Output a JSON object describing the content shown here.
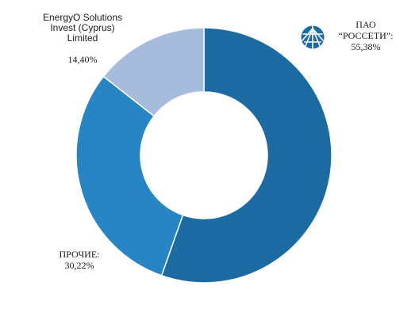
{
  "chart_data": {
    "type": "pie",
    "title": "",
    "donut": true,
    "start_angle_deg": 0,
    "direction": "clockwise",
    "slices": [
      {
        "label_lines": [
          "ПАО",
          "“РОССЕТИ”:"
        ],
        "value_text": "55,38%",
        "value": 55.38,
        "color": "#1b6aa1"
      },
      {
        "label_lines": [
          "ПРОЧИЕ:"
        ],
        "value_text": "30,22%",
        "value": 30.22,
        "color": "#2785c4"
      },
      {
        "label_lines": [
          "EnergyO Solutions",
          "Invest (Cyprus)",
          "Limited"
        ],
        "value_text": "14,40%",
        "value": 14.4,
        "color": "#a7bcdc"
      }
    ]
  },
  "logo": {
    "icon": "rosseti-logo-icon",
    "color": "#1b6aa1"
  }
}
